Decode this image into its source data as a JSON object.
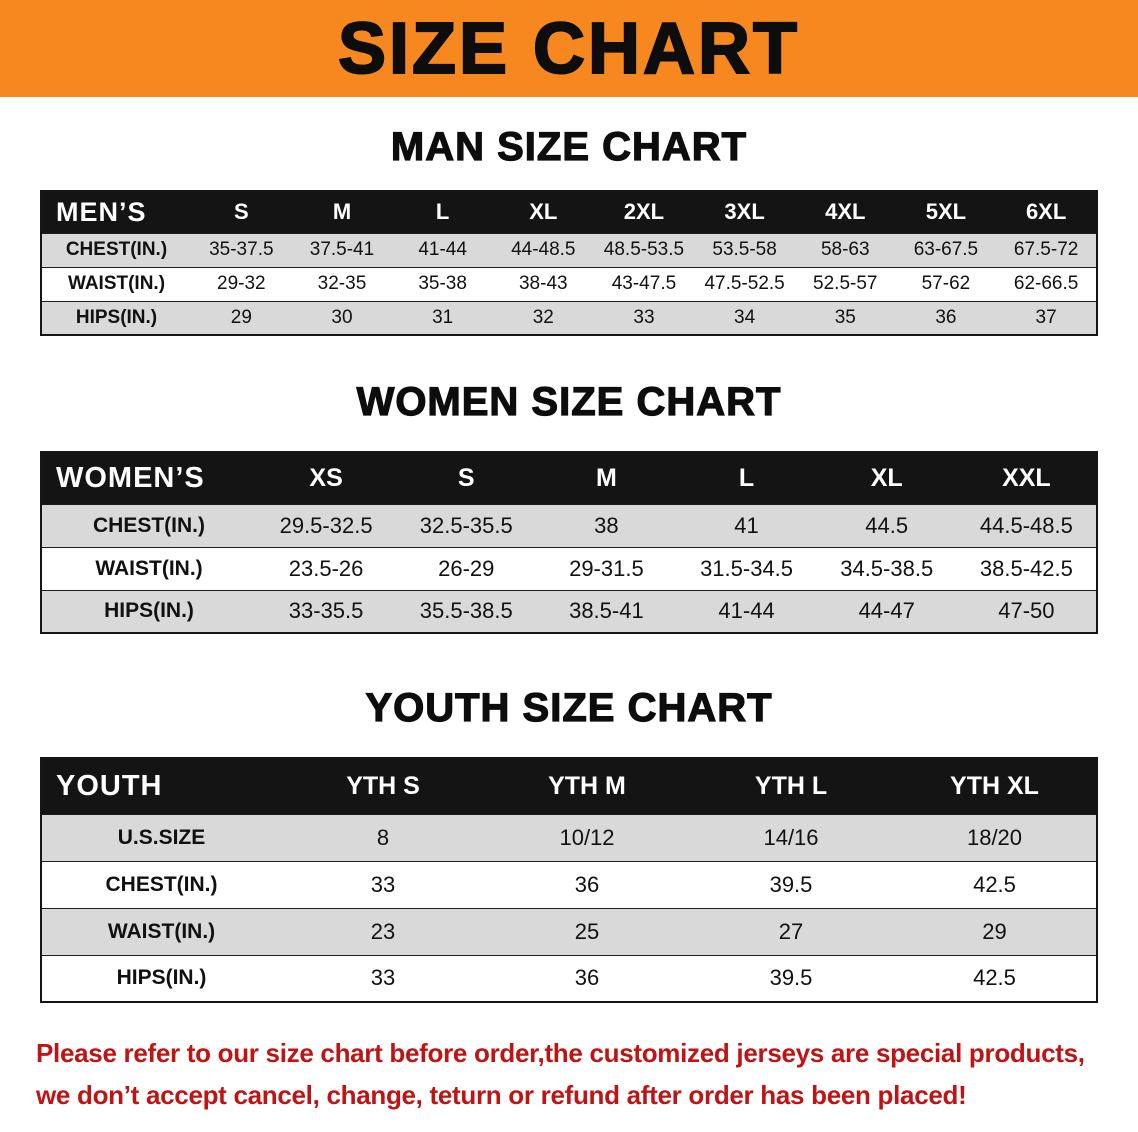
{
  "banner": {
    "title": "SIZE CHART"
  },
  "colors": {
    "banner_bg": "#f6881f",
    "table_header_bg": "#141414",
    "row_shade": "#d9d9d9",
    "footer_text": "#c01414"
  },
  "footer": {
    "lines": [
      "Please refer to our size chart before order,the customized jerseys are special products,",
      "we don’t accept cancel, change, teturn or refund after order has been placed!"
    ]
  },
  "chart_data": [
    {
      "type": "table",
      "title": "MAN SIZE CHART",
      "corner_label": "MEN’S",
      "columns": [
        "S",
        "M",
        "L",
        "XL",
        "2XL",
        "3XL",
        "4XL",
        "5XL",
        "6XL"
      ],
      "rows": [
        {
          "label": "CHEST(IN.)",
          "values": [
            "35-37.5",
            "37.5-41",
            "41-44",
            "44-48.5",
            "48.5-53.5",
            "53.5-58",
            "58-63",
            "63-67.5",
            "67.5-72"
          ]
        },
        {
          "label": "WAIST(IN.)",
          "values": [
            "29-32",
            "32-35",
            "35-38",
            "38-43",
            "43-47.5",
            "47.5-52.5",
            "52.5-57",
            "57-62",
            "62-66.5"
          ]
        },
        {
          "label": "HIPS(IN.)",
          "values": [
            "29",
            "30",
            "31",
            "32",
            "33",
            "34",
            "35",
            "36",
            "37"
          ]
        }
      ]
    },
    {
      "type": "table",
      "title": "WOMEN SIZE CHART",
      "corner_label": "WOMEN’S",
      "columns": [
        "XS",
        "S",
        "M",
        "L",
        "XL",
        "XXL"
      ],
      "rows": [
        {
          "label": "CHEST(IN.)",
          "values": [
            "29.5-32.5",
            "32.5-35.5",
            "38",
            "41",
            "44.5",
            "44.5-48.5"
          ]
        },
        {
          "label": "WAIST(IN.)",
          "values": [
            "23.5-26",
            "26-29",
            "29-31.5",
            "31.5-34.5",
            "34.5-38.5",
            "38.5-42.5"
          ]
        },
        {
          "label": "HIPS(IN.)",
          "values": [
            "33-35.5",
            "35.5-38.5",
            "38.5-41",
            "41-44",
            "44-47",
            "47-50"
          ]
        }
      ]
    },
    {
      "type": "table",
      "title": "YOUTH SIZE CHART",
      "corner_label": "YOUTH",
      "columns": [
        "YTH S",
        "YTH M",
        "YTH L",
        "YTH XL"
      ],
      "rows": [
        {
          "label": "U.S.SIZE",
          "values": [
            "8",
            "10/12",
            "14/16",
            "18/20"
          ]
        },
        {
          "label": "CHEST(IN.)",
          "values": [
            "33",
            "36",
            "39.5",
            "42.5"
          ]
        },
        {
          "label": "WAIST(IN.)",
          "values": [
            "23",
            "25",
            "27",
            "29"
          ]
        },
        {
          "label": "HIPS(IN.)",
          "values": [
            "33",
            "36",
            "39.5",
            "42.5"
          ]
        }
      ]
    }
  ]
}
